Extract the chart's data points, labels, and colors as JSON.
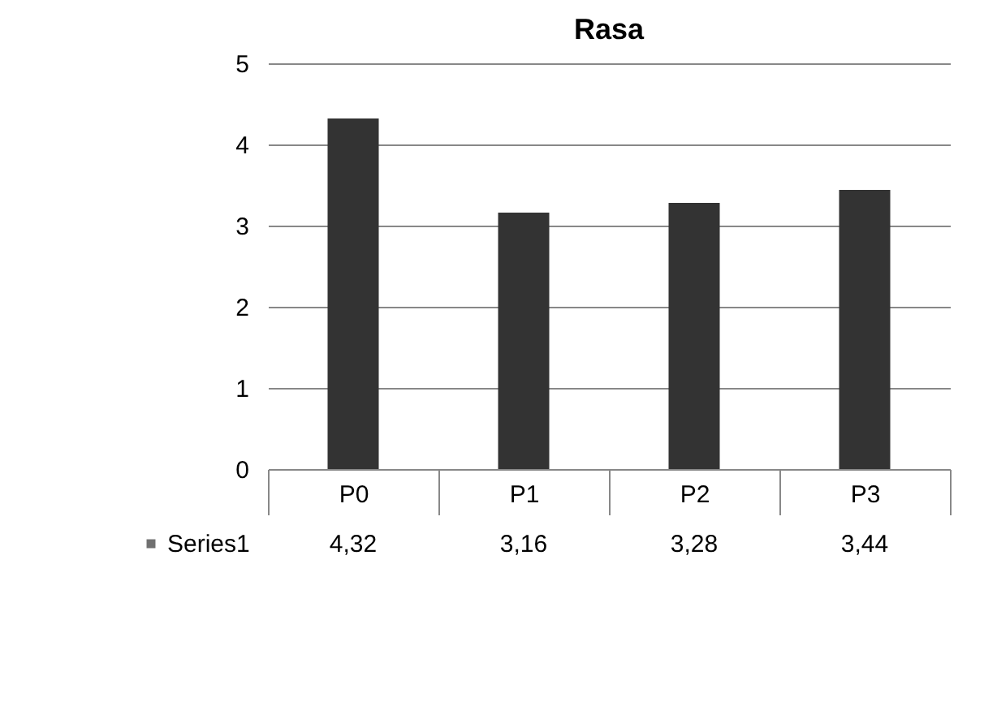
{
  "chart_data": {
    "type": "bar",
    "title": "Rasa",
    "categories": [
      "P0",
      "P1",
      "P2",
      "P3"
    ],
    "series": [
      {
        "name": "Series1",
        "color": "#333333",
        "values": [
          4.32,
          3.16,
          3.28,
          3.44
        ],
        "value_labels": [
          "4,32",
          "3,16",
          "3,28",
          "3,44"
        ]
      }
    ],
    "ylim": [
      0,
      5
    ],
    "yticks": [
      0,
      1,
      2,
      3,
      4,
      5
    ],
    "grid": "y"
  }
}
